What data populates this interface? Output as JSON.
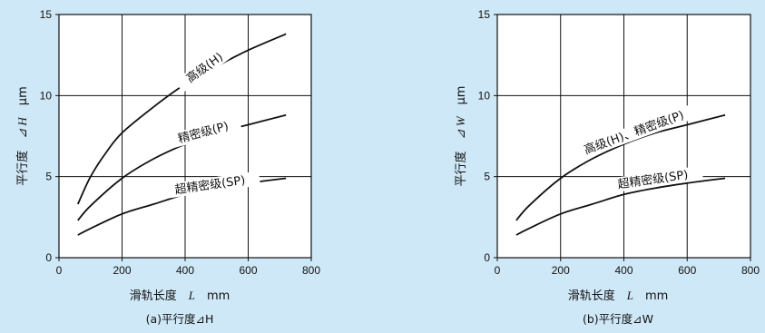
{
  "colors": {
    "background": "#cfe8f7",
    "plot_bg": "#ffffff",
    "ink": "#111111"
  },
  "chart_data": [
    {
      "type": "line",
      "caption": "(a)平行度⊿H",
      "xlabel": {
        "text": "滑轨长度",
        "symbol": "L",
        "unit": "mm"
      },
      "ylabel": {
        "text": "平行度",
        "symbol": "⊿ H",
        "unit": "μm"
      },
      "xlim": [
        0,
        800
      ],
      "ylim": [
        0,
        15
      ],
      "xticks": [
        "0",
        "200",
        "400",
        "600",
        "800"
      ],
      "yticks": [
        "0",
        "5",
        "10",
        "15"
      ],
      "grid": true,
      "series": [
        {
          "name": "高级(H)",
          "x": [
            60,
            100,
            150,
            200,
            300,
            400,
            500,
            600,
            720
          ],
          "y": [
            3.3,
            5.0,
            6.5,
            7.7,
            9.3,
            10.7,
            11.8,
            12.8,
            13.8
          ]
        },
        {
          "name": "精密级(P)",
          "x": [
            60,
            100,
            200,
            300,
            400,
            500,
            600,
            720
          ],
          "y": [
            2.3,
            3.2,
            4.9,
            6.1,
            7.0,
            7.7,
            8.2,
            8.8
          ]
        },
        {
          "name": "超精密级(SP)",
          "x": [
            60,
            100,
            200,
            300,
            400,
            500,
            600,
            720
          ],
          "y": [
            1.4,
            1.8,
            2.7,
            3.3,
            3.9,
            4.3,
            4.6,
            4.9
          ]
        }
      ]
    },
    {
      "type": "line",
      "caption": "(b)平行度⊿W",
      "xlabel": {
        "text": "滑轨长度",
        "symbol": "L",
        "unit": "mm"
      },
      "ylabel": {
        "text": "平行度",
        "symbol": "⊿ W",
        "unit": "μm"
      },
      "xlim": [
        0,
        800
      ],
      "ylim": [
        0,
        15
      ],
      "xticks": [
        "0",
        "200",
        "400",
        "600",
        "800"
      ],
      "yticks": [
        "0",
        "5",
        "10",
        "15"
      ],
      "grid": true,
      "series": [
        {
          "name": "高级(H)、精密级(P)",
          "x": [
            60,
            100,
            200,
            300,
            400,
            500,
            600,
            720
          ],
          "y": [
            2.3,
            3.2,
            4.9,
            6.1,
            7.0,
            7.7,
            8.2,
            8.8
          ]
        },
        {
          "name": "超精密级(SP)",
          "x": [
            60,
            100,
            200,
            300,
            400,
            500,
            600,
            720
          ],
          "y": [
            1.4,
            1.8,
            2.7,
            3.3,
            3.9,
            4.3,
            4.6,
            4.9
          ]
        }
      ]
    }
  ]
}
